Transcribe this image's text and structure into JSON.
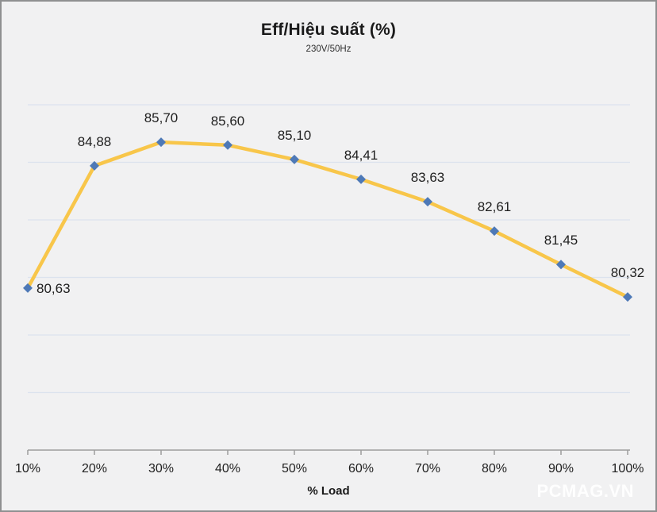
{
  "watermark_text": "PCMAG.VN",
  "chart_data": {
    "type": "line",
    "title": "Eff/Hiệu suất (%)",
    "subtitle": "230V/50Hz",
    "xlabel": "% Load",
    "ylabel": "",
    "categories": [
      "10%",
      "20%",
      "30%",
      "40%",
      "50%",
      "60%",
      "70%",
      "80%",
      "90%",
      "100%"
    ],
    "series": [
      {
        "name": "Eff/Hiệu suất (%)",
        "values": [
          80.63,
          84.88,
          85.7,
          85.6,
          85.1,
          84.41,
          83.63,
          82.61,
          81.45,
          80.32
        ]
      }
    ],
    "data_labels": [
      "80,63",
      "84,88",
      "85,70",
      "85,60",
      "85,10",
      "84,41",
      "83,63",
      "82,61",
      "81,45",
      "80,32"
    ],
    "ylim": [
      75,
      87
    ],
    "grid_step": 2,
    "grid": true,
    "legend": "none",
    "colors": {
      "line": "#F8C64A",
      "marker": "#4E79B7",
      "grid": "#DCE3EE",
      "axis": "#9D9D9D",
      "label_text": "#1F1F1F",
      "background": "#F1F1F2",
      "watermark": "#FFFFFF"
    }
  }
}
